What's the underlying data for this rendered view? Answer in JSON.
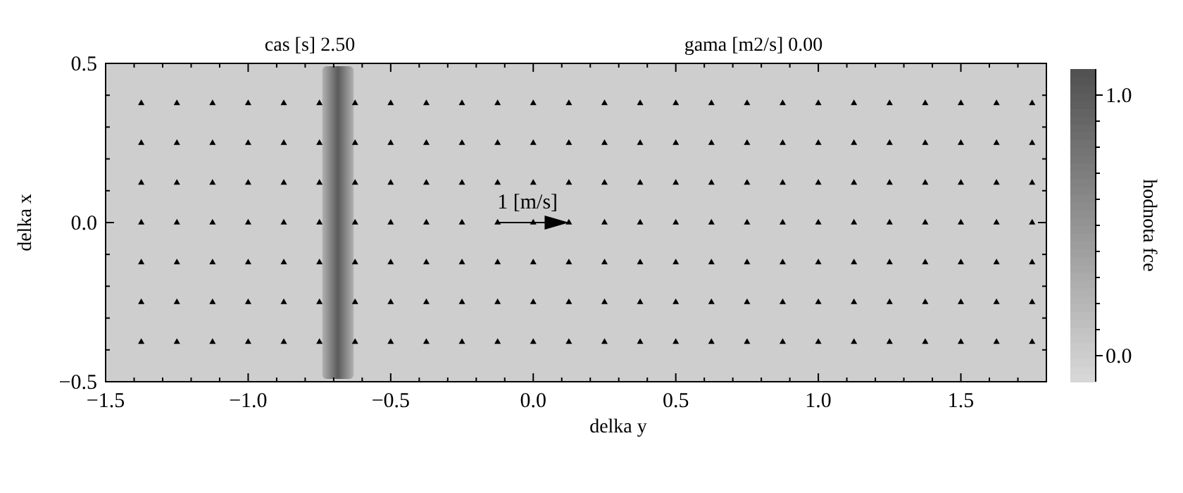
{
  "chart_data": {
    "type": "scatter",
    "title": "cas [s] 2.50",
    "subtitle": "gama [m2/s] 0.00",
    "xlabel": "delka y",
    "ylabel": "delka x",
    "clabel": "hodnota fce",
    "xlim": [
      -1.5,
      1.8
    ],
    "ylim": [
      -0.5,
      0.5
    ],
    "xticks": [
      {
        "value": -1.5,
        "label": "−1.5"
      },
      {
        "value": -1.4,
        "label": null
      },
      {
        "value": -1.3,
        "label": null
      },
      {
        "value": -1.2,
        "label": null
      },
      {
        "value": -1.1,
        "label": null
      },
      {
        "value": -1.0,
        "label": "−1.0"
      },
      {
        "value": -0.9,
        "label": null
      },
      {
        "value": -0.8,
        "label": null
      },
      {
        "value": -0.7,
        "label": null
      },
      {
        "value": -0.6,
        "label": null
      },
      {
        "value": -0.5,
        "label": "−0.5"
      },
      {
        "value": -0.4,
        "label": null
      },
      {
        "value": -0.3,
        "label": null
      },
      {
        "value": -0.2,
        "label": null
      },
      {
        "value": -0.1,
        "label": null
      },
      {
        "value": 0,
        "label": "0.0"
      },
      {
        "value": 0.1,
        "label": null
      },
      {
        "value": 0.2,
        "label": null
      },
      {
        "value": 0.3,
        "label": null
      },
      {
        "value": 0.4,
        "label": null
      },
      {
        "value": 0.5,
        "label": "0.5"
      },
      {
        "value": 0.6,
        "label": null
      },
      {
        "value": 0.7,
        "label": null
      },
      {
        "value": 0.8,
        "label": null
      },
      {
        "value": 0.9,
        "label": null
      },
      {
        "value": 1.0,
        "label": "1.0"
      },
      {
        "value": 1.1,
        "label": null
      },
      {
        "value": 1.2,
        "label": null
      },
      {
        "value": 1.3,
        "label": null
      },
      {
        "value": 1.4,
        "label": null
      },
      {
        "value": 1.5,
        "label": "1.5"
      },
      {
        "value": 1.6,
        "label": null
      },
      {
        "value": 1.7,
        "label": null
      }
    ],
    "yticks": [
      {
        "value": -0.5,
        "label": "−0.5"
      },
      {
        "value": -0.4,
        "label": null
      },
      {
        "value": -0.3,
        "label": null
      },
      {
        "value": -0.2,
        "label": null
      },
      {
        "value": -0.1,
        "label": null
      },
      {
        "value": 0,
        "label": "0.0"
      },
      {
        "value": 0.1,
        "label": null
      },
      {
        "value": 0.2,
        "label": null
      },
      {
        "value": 0.3,
        "label": null
      },
      {
        "value": 0.4,
        "label": null
      },
      {
        "value": 0.5,
        "label": "0.5"
      }
    ],
    "clim": [
      -0.1,
      1.1
    ],
    "cticks": [
      {
        "value": 0,
        "label": "0.0"
      },
      {
        "value": 0.1,
        "label": null
      },
      {
        "value": 0.2,
        "label": null
      },
      {
        "value": 0.3,
        "label": null
      },
      {
        "value": 0.4,
        "label": null
      },
      {
        "value": 0.5,
        "label": null
      },
      {
        "value": 0.6,
        "label": null
      },
      {
        "value": 0.7,
        "label": null
      },
      {
        "value": 0.8,
        "label": null
      },
      {
        "value": 0.9,
        "label": null
      },
      {
        "value": 1.0,
        "label": "1.0"
      }
    ],
    "annotations": [
      "1 [m/s]"
    ],
    "bands": [
      {
        "axis": "x",
        "from": -0.74,
        "to": -0.63,
        "color": "#5b5b5b"
      }
    ],
    "series": [
      {
        "type": "scatter",
        "marker": "triangle",
        "color": "#000000",
        "x": [
          -1.375,
          -1.25,
          -1.125,
          -1,
          -0.875,
          -0.75,
          -0.625,
          -0.5,
          -0.375,
          -0.25,
          -0.125,
          0,
          0.125,
          0.25,
          0.375,
          0.5,
          0.625,
          0.75,
          0.875,
          1,
          1.125,
          1.25,
          1.375,
          1.5,
          1.625,
          1.75,
          -1.375,
          -1.25,
          -1.125,
          -1,
          -0.875,
          -0.75,
          -0.625,
          -0.5,
          -0.375,
          -0.25,
          -0.125,
          0,
          0.125,
          0.25,
          0.375,
          0.5,
          0.625,
          0.75,
          0.875,
          1,
          1.125,
          1.25,
          1.375,
          1.5,
          1.625,
          1.75,
          -1.375,
          -1.25,
          -1.125,
          -1,
          -0.875,
          -0.75,
          -0.625,
          -0.5,
          -0.375,
          -0.25,
          -0.125,
          0,
          0.125,
          0.25,
          0.375,
          0.5,
          0.625,
          0.75,
          0.875,
          1,
          1.125,
          1.25,
          1.375,
          1.5,
          1.625,
          1.75,
          -1.375,
          -1.25,
          -1.125,
          -1,
          -0.875,
          -0.75,
          -0.625,
          -0.5,
          -0.375,
          -0.25,
          -0.125,
          0,
          0.125,
          0.25,
          0.375,
          0.5,
          0.625,
          0.75,
          0.875,
          1,
          1.125,
          1.25,
          1.375,
          1.5,
          1.625,
          1.75,
          -1.375,
          -1.25,
          -1.125,
          -1,
          -0.875,
          -0.75,
          -0.625,
          -0.5,
          -0.375,
          -0.25,
          -0.125,
          0,
          0.125,
          0.25,
          0.375,
          0.5,
          0.625,
          0.75,
          0.875,
          1,
          1.125,
          1.25,
          1.375,
          1.5,
          1.625,
          1.75,
          -1.375,
          -1.25,
          -1.125,
          -1,
          -0.875,
          -0.75,
          -0.625,
          -0.5,
          -0.375,
          -0.25,
          -0.125,
          0,
          0.125,
          0.25,
          0.375,
          0.5,
          0.625,
          0.75,
          0.875,
          1,
          1.125,
          1.25,
          1.375,
          1.5,
          1.625,
          1.75,
          -1.375,
          -1.25,
          -1.125,
          -1,
          -0.875,
          -0.75,
          -0.625,
          -0.5,
          -0.375,
          -0.25,
          -0.125,
          0,
          0.125,
          0.25,
          0.375,
          0.5,
          0.625,
          0.75,
          0.875,
          1,
          1.125,
          1.25,
          1.375,
          1.5,
          1.625,
          1.75
        ],
        "values": [
          0.375,
          0.375,
          0.375,
          0.375,
          0.375,
          0.375,
          0.375,
          0.375,
          0.375,
          0.375,
          0.375,
          0.375,
          0.375,
          0.375,
          0.375,
          0.375,
          0.375,
          0.375,
          0.375,
          0.375,
          0.375,
          0.375,
          0.375,
          0.375,
          0.375,
          0.375,
          0.25,
          0.25,
          0.25,
          0.25,
          0.25,
          0.25,
          0.25,
          0.25,
          0.25,
          0.25,
          0.25,
          0.25,
          0.25,
          0.25,
          0.25,
          0.25,
          0.25,
          0.25,
          0.25,
          0.25,
          0.25,
          0.25,
          0.25,
          0.25,
          0.25,
          0.25,
          0.125,
          0.125,
          0.125,
          0.125,
          0.125,
          0.125,
          0.125,
          0.125,
          0.125,
          0.125,
          0.125,
          0.125,
          0.125,
          0.125,
          0.125,
          0.125,
          0.125,
          0.125,
          0.125,
          0.125,
          0.125,
          0.125,
          0.125,
          0.125,
          0.125,
          0.125,
          0,
          0,
          0,
          0,
          0,
          0,
          0,
          0,
          0,
          0,
          0,
          0,
          0,
          0,
          0,
          0,
          0,
          0,
          0,
          0,
          0,
          0,
          0,
          0,
          0,
          0,
          -0.125,
          -0.125,
          -0.125,
          -0.125,
          -0.125,
          -0.125,
          -0.125,
          -0.125,
          -0.125,
          -0.125,
          -0.125,
          -0.125,
          -0.125,
          -0.125,
          -0.125,
          -0.125,
          -0.125,
          -0.125,
          -0.125,
          -0.125,
          -0.125,
          -0.125,
          -0.125,
          -0.125,
          -0.125,
          -0.125,
          -0.25,
          -0.25,
          -0.25,
          -0.25,
          -0.25,
          -0.25,
          -0.25,
          -0.25,
          -0.25,
          -0.25,
          -0.25,
          -0.25,
          -0.25,
          -0.25,
          -0.25,
          -0.25,
          -0.25,
          -0.25,
          -0.25,
          -0.25,
          -0.25,
          -0.25,
          -0.25,
          -0.25,
          -0.25,
          -0.25,
          -0.375,
          -0.375,
          -0.375,
          -0.375,
          -0.375,
          -0.375,
          -0.375,
          -0.375,
          -0.375,
          -0.375,
          -0.375,
          -0.375,
          -0.375,
          -0.375,
          -0.375,
          -0.375,
          -0.375,
          -0.375,
          -0.375,
          -0.375,
          -0.375,
          -0.375,
          -0.375,
          -0.375,
          -0.375,
          -0.375
        ]
      }
    ]
  }
}
